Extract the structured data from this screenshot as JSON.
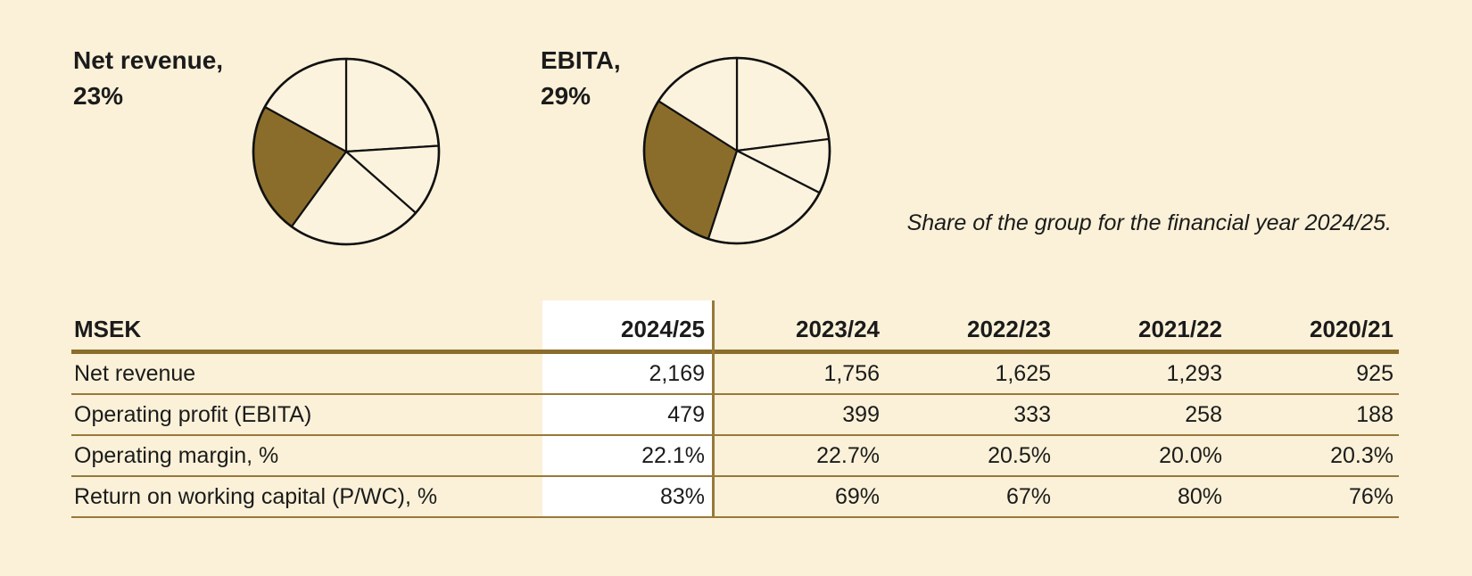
{
  "colors": {
    "background": "#FBF1D8",
    "pie_fill": "#FCF3DE",
    "brown": "#8B6D2B",
    "line_thin": "#97793A",
    "highlight_bg": "#FFFFFF",
    "text": "#1B1B1B",
    "stroke": "#111111"
  },
  "caption": "Share of the group for the financial year 2024/25.",
  "chart_data": [
    {
      "type": "pie",
      "title": "Net revenue, 23%",
      "title_line1": "Net revenue,",
      "title_line2": "23%",
      "values": [
        24,
        12.5,
        23.5,
        23,
        17
      ],
      "highlighted_index": 3,
      "highlighted_value_label": "23%",
      "start_angle_deg": 0,
      "direction": "clockwise",
      "note": "Only the highlighted (brown) slice is labeled; other slices are unlabeled group shares"
    },
    {
      "type": "pie",
      "title": "EBITA, 29%",
      "title_line1": "EBITA,",
      "title_line2": "29%",
      "values": [
        23,
        9.5,
        22.5,
        29,
        16
      ],
      "highlighted_index": 3,
      "highlighted_value_label": "29%",
      "start_angle_deg": 0,
      "direction": "clockwise",
      "note": "Only the highlighted (brown) slice is labeled; other slices are unlabeled group shares"
    },
    {
      "type": "table",
      "unit_header": "MSEK",
      "columns": [
        "2024/25",
        "2023/24",
        "2022/23",
        "2021/22",
        "2020/21"
      ],
      "highlighted_column": "2024/25",
      "rows": [
        {
          "label": "Net revenue",
          "values": [
            "2,169",
            "1,756",
            "1,625",
            "1,293",
            "925"
          ]
        },
        {
          "label": "Operating profit (EBITA)",
          "values": [
            "479",
            "399",
            "333",
            "258",
            "188"
          ]
        },
        {
          "label": "Operating margin, %",
          "values": [
            "22.1%",
            "22.7%",
            "20.5%",
            "20.0%",
            "20.3%"
          ]
        },
        {
          "label": "Return on working capital (P/WC), %",
          "values": [
            "83%",
            "69%",
            "67%",
            "80%",
            "76%"
          ]
        }
      ]
    }
  ]
}
